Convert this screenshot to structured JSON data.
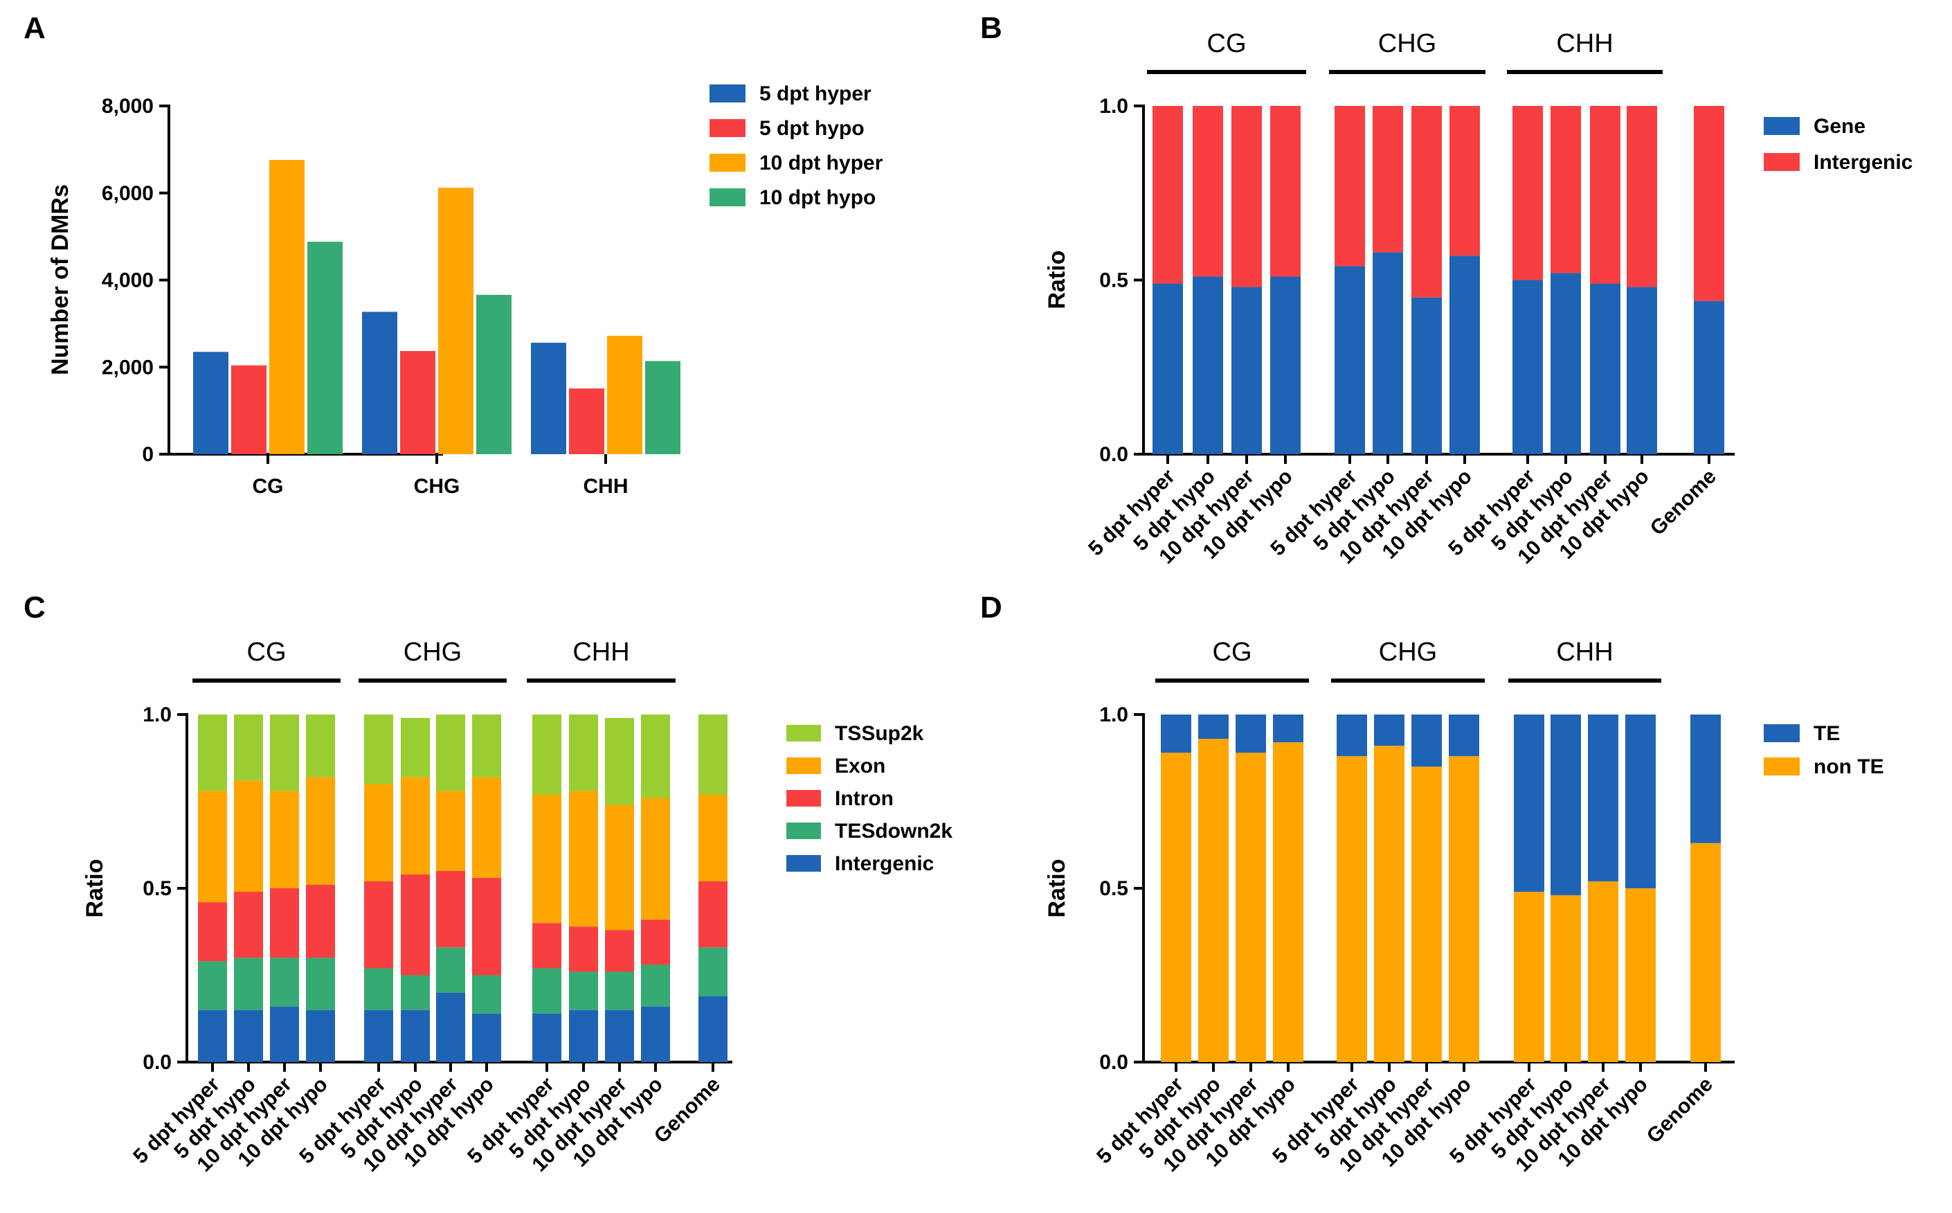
{
  "chart_data": [
    {
      "panel": "A",
      "type": "bar",
      "categories": [
        "CG",
        "CHG",
        "CHH"
      ],
      "series": [
        {
          "name": "5 dpt hyper",
          "color": "#1f64b4",
          "values": [
            2350,
            3270,
            2560
          ]
        },
        {
          "name": "5 dpt hypo",
          "color": "#f73f41",
          "values": [
            2040,
            2370,
            1510
          ]
        },
        {
          "name": "10 dpt hyper",
          "color": "#ffa500",
          "values": [
            6760,
            6120,
            2720
          ]
        },
        {
          "name": "10 dpt hypo",
          "color": "#36aa73",
          "values": [
            4880,
            3660,
            2140
          ]
        }
      ],
      "ylabel": "Number of DMRs",
      "xlabel": "",
      "ylim": [
        0,
        8000
      ],
      "yticks": [
        0,
        2000,
        4000,
        6000,
        8000
      ],
      "ytick_labels": [
        "0",
        "2,000",
        "4,000",
        "6,000",
        "8,000"
      ],
      "legend": "top-right"
    },
    {
      "panel": "B",
      "type": "bar",
      "stacked": true,
      "categories": [
        "5 dpt hyper",
        "5 dpt hypo",
        "10 dpt hyper",
        "10 dpt hypo",
        "5 dpt hyper",
        "5 dpt hypo",
        "10 dpt hyper",
        "10 dpt hypo",
        "5 dpt hyper",
        "5 dpt hypo",
        "10 dpt hyper",
        "10 dpt hypo",
        "Genome"
      ],
      "groups": [
        {
          "label": "CG",
          "from": 0,
          "to": 3
        },
        {
          "label": "CHG",
          "from": 4,
          "to": 7
        },
        {
          "label": "CHH",
          "from": 8,
          "to": 11
        }
      ],
      "series": [
        {
          "name": "Gene",
          "color": "#1f64b4",
          "values": [
            0.49,
            0.51,
            0.48,
            0.51,
            0.54,
            0.58,
            0.45,
            0.57,
            0.5,
            0.52,
            0.49,
            0.48,
            0.44
          ]
        },
        {
          "name": "Intergenic",
          "color": "#f73f41",
          "values": [
            0.51,
            0.49,
            0.52,
            0.49,
            0.46,
            0.42,
            0.55,
            0.43,
            0.5,
            0.48,
            0.51,
            0.52,
            0.56
          ]
        }
      ],
      "ylabel": "Ratio",
      "ylim": [
        0,
        1
      ],
      "yticks": [
        0,
        0.5,
        1
      ],
      "ytick_labels": [
        "0.0",
        "0.5",
        "1.0"
      ],
      "legend": "top-right"
    },
    {
      "panel": "C",
      "type": "bar",
      "stacked": true,
      "categories": [
        "5 dpt hyper",
        "5 dpt hypo",
        "10 dpt hyper",
        "10 dpt hypo",
        "5 dpt hyper",
        "5 dpt hypo",
        "10 dpt hyper",
        "10 dpt hypo",
        "5 dpt hyper",
        "5 dpt hypo",
        "10 dpt hyper",
        "10 dpt hypo",
        "Genome"
      ],
      "groups": [
        {
          "label": "CG",
          "from": 0,
          "to": 3
        },
        {
          "label": "CHG",
          "from": 4,
          "to": 7
        },
        {
          "label": "CHH",
          "from": 8,
          "to": 11
        }
      ],
      "series": [
        {
          "name": "Intergenic",
          "color": "#1f64b4",
          "values": [
            0.15,
            0.15,
            0.16,
            0.15,
            0.15,
            0.15,
            0.2,
            0.14,
            0.14,
            0.15,
            0.15,
            0.16,
            0.19
          ]
        },
        {
          "name": "TESdown2k",
          "color": "#36aa73",
          "values": [
            0.14,
            0.15,
            0.14,
            0.15,
            0.12,
            0.1,
            0.13,
            0.11,
            0.13,
            0.11,
            0.11,
            0.12,
            0.14
          ]
        },
        {
          "name": "Intron",
          "color": "#f73f41",
          "values": [
            0.17,
            0.19,
            0.2,
            0.21,
            0.25,
            0.29,
            0.22,
            0.28,
            0.13,
            0.13,
            0.12,
            0.13,
            0.19
          ]
        },
        {
          "name": "Exon",
          "color": "#ffa500",
          "values": [
            0.32,
            0.32,
            0.28,
            0.31,
            0.28,
            0.28,
            0.23,
            0.29,
            0.37,
            0.39,
            0.36,
            0.35,
            0.25
          ]
        },
        {
          "name": "TSSup2k",
          "color": "#9acd32",
          "values": [
            0.22,
            0.19,
            0.22,
            0.18,
            0.2,
            0.17,
            0.22,
            0.18,
            0.23,
            0.22,
            0.25,
            0.24,
            0.23
          ]
        }
      ],
      "legend_order": [
        "TSSup2k",
        "Exon",
        "Intron",
        "TESdown2k",
        "Intergenic"
      ],
      "ylabel": "Ratio",
      "ylim": [
        0,
        1
      ],
      "yticks": [
        0,
        0.5,
        1
      ],
      "ytick_labels": [
        "0.0",
        "0.5",
        "1.0"
      ],
      "legend": "top-right"
    },
    {
      "panel": "D",
      "type": "bar",
      "stacked": true,
      "categories": [
        "5 dpt hyper",
        "5 dpt hypo",
        "10 dpt hyper",
        "10 dpt hypo",
        "5 dpt hyper",
        "5 dpt hypo",
        "10 dpt hyper",
        "10 dpt hypo",
        "5 dpt hyper",
        "5 dpt hypo",
        "10 dpt hyper",
        "10 dpt hypo",
        "Genome"
      ],
      "groups": [
        {
          "label": "CG",
          "from": 0,
          "to": 3
        },
        {
          "label": "CHG",
          "from": 4,
          "to": 7
        },
        {
          "label": "CHH",
          "from": 8,
          "to": 11
        }
      ],
      "series": [
        {
          "name": "non TE",
          "color": "#ffa500",
          "values": [
            0.89,
            0.93,
            0.89,
            0.92,
            0.88,
            0.91,
            0.85,
            0.88,
            0.49,
            0.48,
            0.52,
            0.5,
            0.63
          ]
        },
        {
          "name": "TE",
          "color": "#1f64b4",
          "values": [
            0.11,
            0.07,
            0.11,
            0.08,
            0.12,
            0.09,
            0.15,
            0.12,
            0.51,
            0.52,
            0.48,
            0.5,
            0.37
          ]
        }
      ],
      "legend_order": [
        "TE",
        "non TE"
      ],
      "ylabel": "Ratio",
      "ylim": [
        0,
        1
      ],
      "yticks": [
        0,
        0.5,
        1
      ],
      "ytick_labels": [
        "0.0",
        "0.5",
        "1.0"
      ],
      "legend": "top-right"
    }
  ]
}
